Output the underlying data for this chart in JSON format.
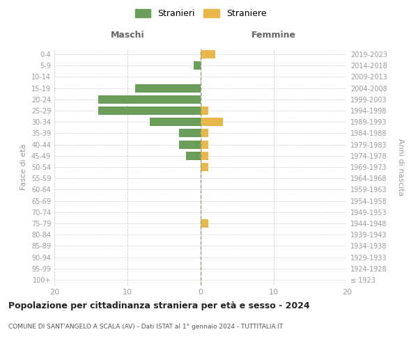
{
  "age_groups": [
    "100+",
    "95-99",
    "90-94",
    "85-89",
    "80-84",
    "75-79",
    "70-74",
    "65-69",
    "60-64",
    "55-59",
    "50-54",
    "45-49",
    "40-44",
    "35-39",
    "30-34",
    "25-29",
    "20-24",
    "15-19",
    "10-14",
    "5-9",
    "0-4"
  ],
  "birth_years": [
    "≤ 1923",
    "1924-1928",
    "1929-1933",
    "1934-1938",
    "1939-1943",
    "1944-1948",
    "1949-1953",
    "1954-1958",
    "1959-1963",
    "1964-1968",
    "1969-1973",
    "1974-1978",
    "1979-1983",
    "1984-1988",
    "1989-1993",
    "1994-1998",
    "1999-2003",
    "2004-2008",
    "2009-2013",
    "2014-2018",
    "2019-2023"
  ],
  "maschi_stranieri": [
    0,
    0,
    0,
    0,
    0,
    0,
    0,
    0,
    0,
    0,
    0,
    2,
    3,
    3,
    7,
    14,
    14,
    9,
    0,
    1,
    0
  ],
  "femmine_straniere": [
    0,
    0,
    0,
    0,
    0,
    1,
    0,
    0,
    0,
    0,
    1,
    1,
    1,
    1,
    3,
    1,
    0,
    0,
    0,
    0,
    2
  ],
  "color_maschi": "#6a9e5b",
  "color_femmine": "#e8b84b",
  "title": "Popolazione per cittadinanza straniera per età e sesso - 2024",
  "subtitle": "COMUNE DI SANT'ANGELO A SCALA (AV) - Dati ISTAT al 1° gennaio 2024 - TUTTITALIA.IT",
  "ylabel_left": "Fasce di età",
  "ylabel_right": "Anni di nascita",
  "xlabel_maschi": "Maschi",
  "xlabel_femmine": "Femmine",
  "legend_maschi": "Stranieri",
  "legend_femmine": "Straniere",
  "xlim": 20,
  "background_color": "#ffffff",
  "grid_color": "#cccccc"
}
